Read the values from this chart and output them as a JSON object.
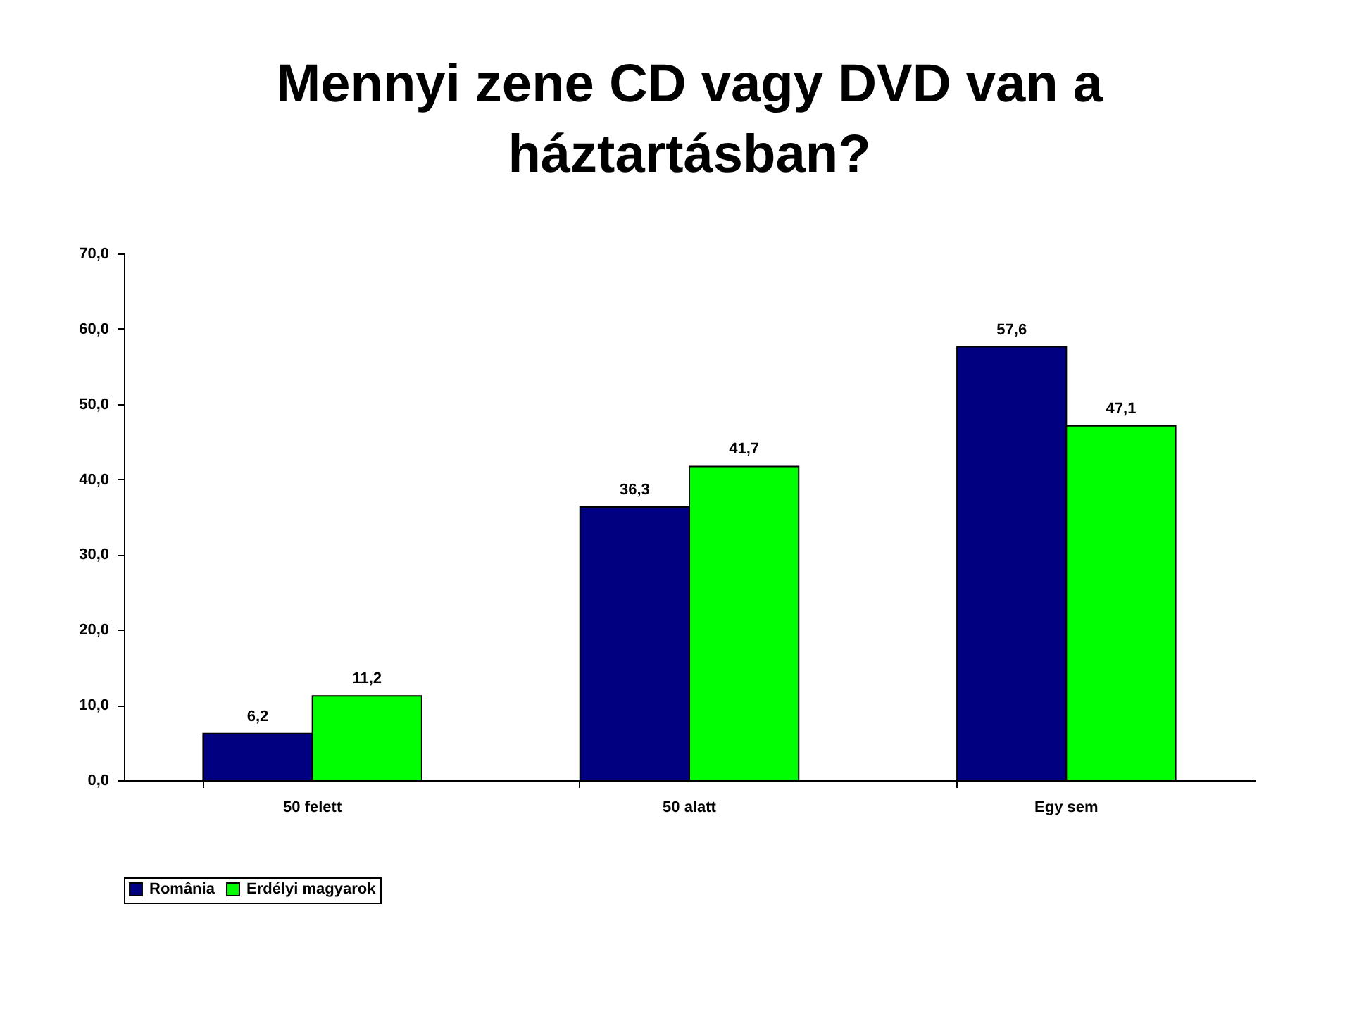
{
  "chart_data": {
    "type": "bar",
    "title": "Mennyi zene CD vagy DVD van a\nháztartásban?",
    "categories": [
      "50 felett",
      "50 alatt",
      "Egy sem"
    ],
    "series": [
      {
        "name": "România",
        "color": "#000080",
        "values": [
          6.2,
          36.3,
          57.6
        ],
        "value_labels": [
          "6,2",
          "36,3",
          "57,6"
        ]
      },
      {
        "name": "Erdélyi magyarok",
        "color": "#00ff00",
        "values": [
          11.2,
          41.7,
          47.1
        ],
        "value_labels": [
          "11,2",
          "41,7",
          "47,1"
        ]
      }
    ],
    "ylim": [
      0,
      70
    ],
    "yticks": [
      {
        "value": 0,
        "label": "0,0"
      },
      {
        "value": 10,
        "label": "10,0"
      },
      {
        "value": 20,
        "label": "20,0"
      },
      {
        "value": 30,
        "label": "30,0"
      },
      {
        "value": 40,
        "label": "40,0"
      },
      {
        "value": 50,
        "label": "50,0"
      },
      {
        "value": 60,
        "label": "60,0"
      },
      {
        "value": 70,
        "label": "70,0"
      }
    ],
    "legend": "bottom"
  }
}
